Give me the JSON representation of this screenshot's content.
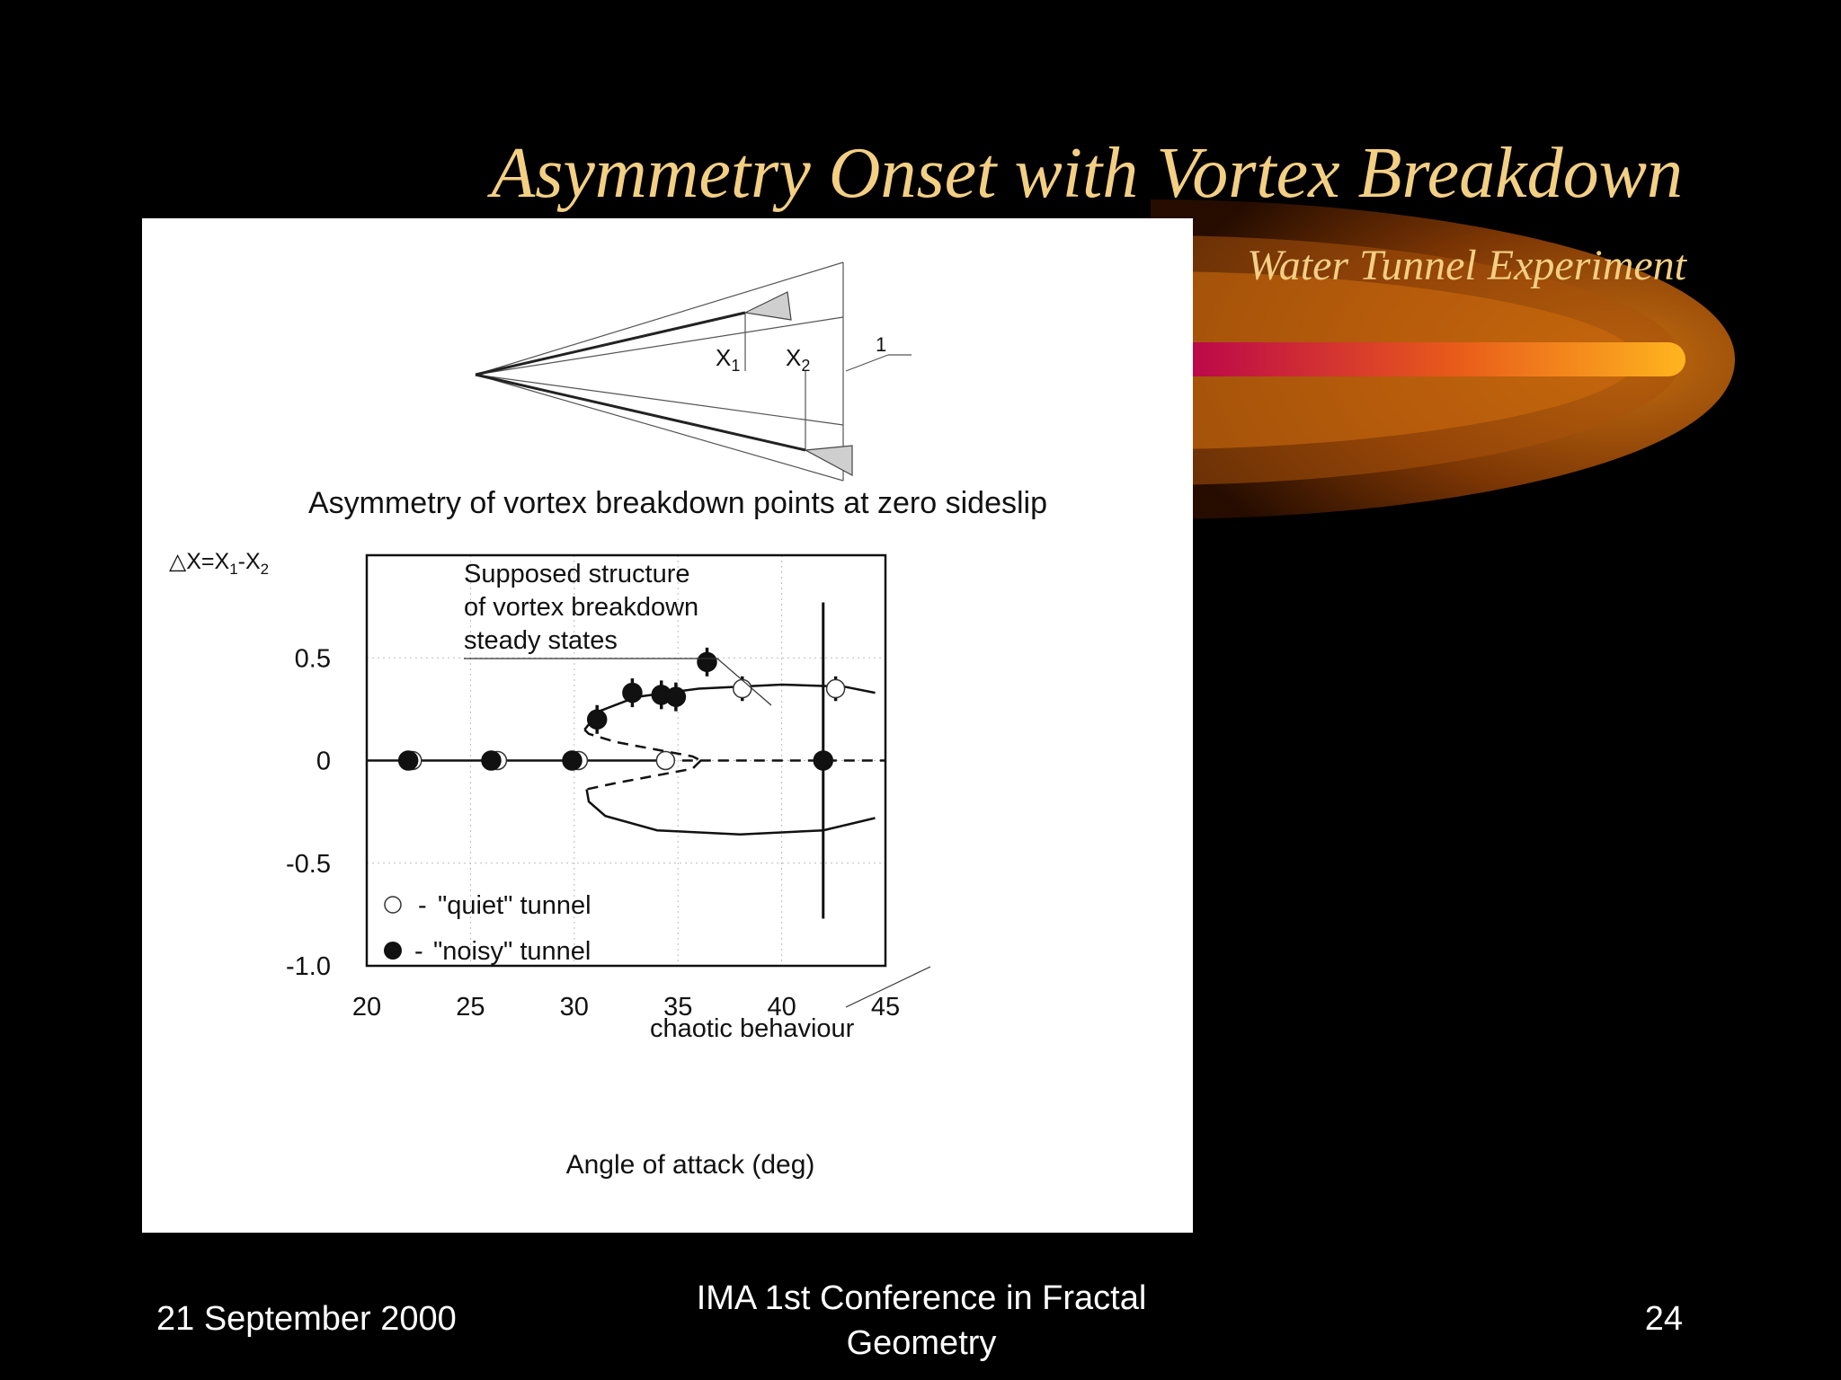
{
  "slide": {
    "title": "Asymmetry Onset with Vortex Breakdown",
    "subtitle": "Water Tunnel Experiment",
    "footer": {
      "date": "21 September 2000",
      "conference": "IMA 1st Conference in Fractal Geometry",
      "page": "24"
    }
  },
  "schematic": {
    "label_x1": "X1",
    "label_x2": "X2",
    "label_1": "1"
  },
  "chart_data": {
    "type": "scatter",
    "title": "Asymmetry of vortex breakdown points at zero sideslip",
    "xlabel": "Angle of attack (deg)",
    "ylabel": "△X=X1-X2",
    "xlim": [
      20,
      45
    ],
    "ylim": [
      -1.0,
      1.0
    ],
    "x_ticks": [
      20,
      25,
      30,
      35,
      40,
      45
    ],
    "y_ticks": [
      0.5,
      0,
      -0.5,
      -1.0
    ],
    "y_tick_labels": [
      "0.5",
      "0",
      "-0.5",
      "-1.0"
    ],
    "grid": true,
    "legend_position": "lower-left",
    "series": [
      {
        "name": "\"quiet\" tunnel",
        "marker": "open-circle",
        "points": [
          {
            "x": 22.2,
            "y": 0.0
          },
          {
            "x": 26.3,
            "y": 0.0
          },
          {
            "x": 30.2,
            "y": 0.0
          },
          {
            "x": 34.4,
            "y": 0.0
          },
          {
            "x": 38.1,
            "y": 0.35,
            "err": 0.06
          },
          {
            "x": 42.6,
            "y": 0.35,
            "err": 0.06
          }
        ]
      },
      {
        "name": "\"noisy\" tunnel",
        "marker": "filled-circle",
        "points": [
          {
            "x": 22.0,
            "y": 0.0
          },
          {
            "x": 26.0,
            "y": 0.0
          },
          {
            "x": 29.9,
            "y": 0.0
          },
          {
            "x": 31.1,
            "y": 0.2,
            "err": 0.07
          },
          {
            "x": 32.8,
            "y": 0.33,
            "err": 0.07
          },
          {
            "x": 34.2,
            "y": 0.32,
            "err": 0.07
          },
          {
            "x": 34.9,
            "y": 0.31,
            "err": 0.07
          },
          {
            "x": 36.4,
            "y": 0.48,
            "err": 0.07
          },
          {
            "x": 42.0,
            "y": 0.0
          }
        ]
      }
    ],
    "annotations": [
      {
        "text": "Supposed structure of vortex breakdown steady states",
        "lines": [
          "Supposed structure",
          "of vortex breakdown",
          "steady states"
        ]
      },
      {
        "text": "chaotic behaviour"
      }
    ]
  }
}
